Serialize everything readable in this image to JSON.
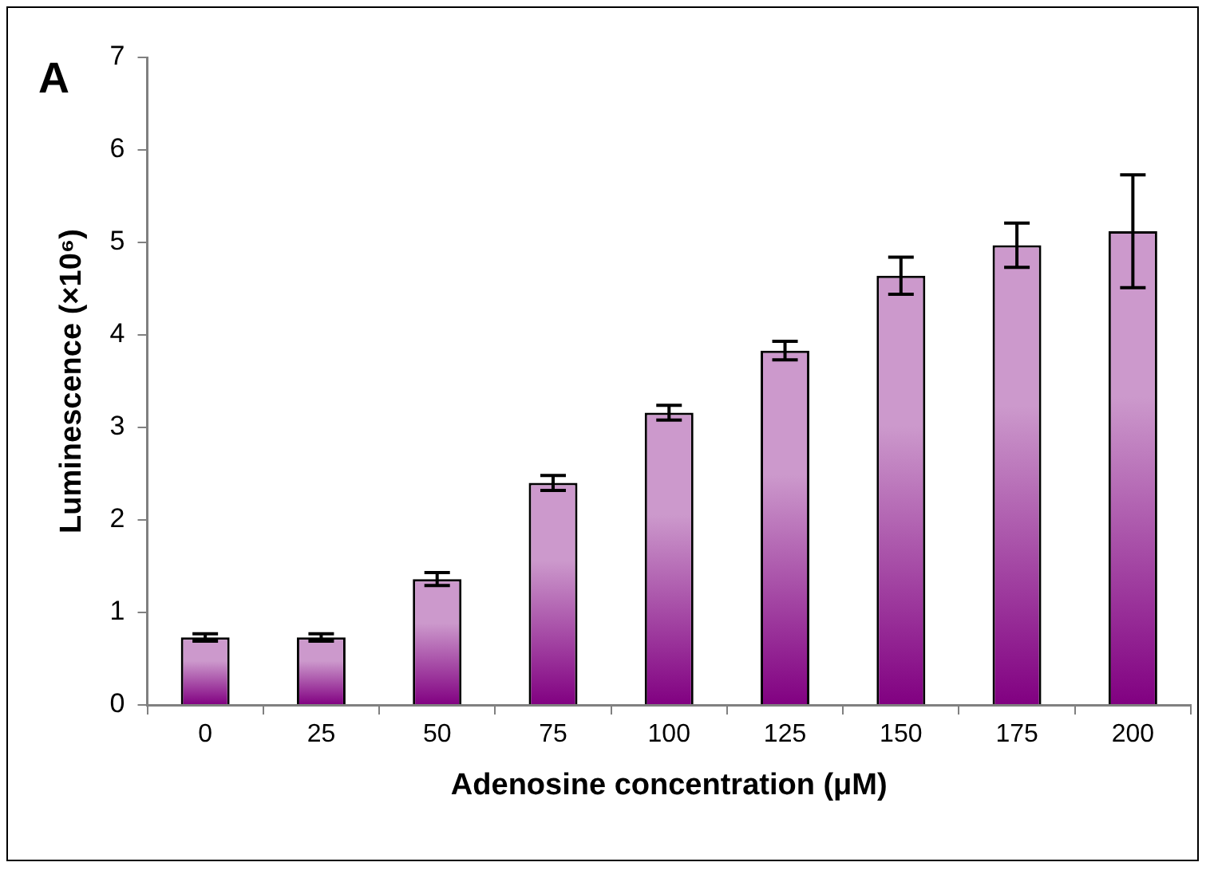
{
  "chart_data": {
    "type": "bar",
    "xlabel": "Adenosine concentration (μM)",
    "ylabel": "Luminescence (×10⁶)",
    "annotations": [
      "A"
    ],
    "categories": [
      "0",
      "25",
      "50",
      "75",
      "100",
      "125",
      "150",
      "175",
      "200"
    ],
    "values": [
      0.73,
      0.73,
      1.36,
      2.4,
      3.16,
      3.83,
      4.64,
      4.97,
      5.12
    ],
    "errors": [
      0.04,
      0.04,
      0.07,
      0.08,
      0.08,
      0.1,
      0.2,
      0.24,
      0.61
    ],
    "color": "#cc99cc",
    "ylim": [
      0,
      7
    ],
    "yticks": [
      0,
      1,
      2,
      3,
      4,
      5,
      6,
      7
    ],
    "grid": false,
    "legend": false
  }
}
